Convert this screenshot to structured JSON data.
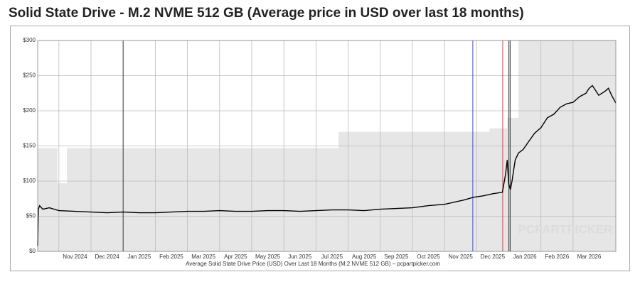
{
  "chart_data": {
    "type": "line",
    "title": "Solid State Drive - M.2 NVME 512 GB (Average price in USD over last 18 months)",
    "x_label": "Average Solid State Drive Price (USD) Over Last 18 Months (M.2 NVME 512 GB) – pcpartpicker.com",
    "watermark": "PCPARTPICKER",
    "xlim": [
      0.34,
      18.33
    ],
    "xticks": [
      {
        "value": 1,
        "label": "Nov 2024"
      },
      {
        "value": 2,
        "label": "Dec 2024"
      },
      {
        "value": 3,
        "label": "Jan 2025"
      },
      {
        "value": 4,
        "label": "Feb 2025"
      },
      {
        "value": 5,
        "label": "Mar 2025"
      },
      {
        "value": 6,
        "label": "Apr 2025"
      },
      {
        "value": 7,
        "label": "May 2025"
      },
      {
        "value": 8,
        "label": "Jun 2025"
      },
      {
        "value": 9,
        "label": "Jul 2025"
      },
      {
        "value": 10,
        "label": "Aug 2025"
      },
      {
        "value": 11,
        "label": "Sep 2025"
      },
      {
        "value": 12,
        "label": "Oct 2025"
      },
      {
        "value": 13,
        "label": "Nov 2025"
      },
      {
        "value": 14,
        "label": "Dec 2025"
      },
      {
        "value": 15,
        "label": "Jan 2026"
      },
      {
        "value": 16,
        "label": "Feb 2026"
      },
      {
        "value": 17,
        "label": "Mar 2026"
      }
    ],
    "ylim": [
      0,
      300
    ],
    "yticks": [
      {
        "value": 0,
        "label": "$0"
      },
      {
        "value": 50,
        "label": "$50"
      },
      {
        "value": 100,
        "label": "$100"
      },
      {
        "value": 150,
        "label": "$150"
      },
      {
        "value": 200,
        "label": "$200"
      },
      {
        "value": 250,
        "label": "$250"
      },
      {
        "value": 300,
        "label": "$300"
      }
    ],
    "grid": true,
    "vlines": [
      {
        "x": 13.88,
        "color": "#3b4fe0"
      },
      {
        "x": 14.81,
        "color": "#e04040"
      },
      {
        "x": 15.04,
        "color": "#222222"
      }
    ],
    "series": [
      {
        "style": "area",
        "color": "#e6e6e6",
        "x": [
          0.34,
          0.95,
          0.95,
          1.25,
          1.25,
          9.7,
          9.7,
          14.4,
          14.4,
          14.95,
          14.95,
          15.3,
          15.3,
          18.33
        ],
        "values": [
          147,
          147,
          97,
          97,
          147,
          147,
          170,
          170,
          175,
          175,
          190,
          190,
          300,
          300
        ]
      },
      {
        "style": "line",
        "color": "#000000",
        "x": [
          0.34,
          0.36,
          0.4,
          0.5,
          0.7,
          1.0,
          1.5,
          2.0,
          2.5,
          3.0,
          3.5,
          4.0,
          4.5,
          5,
          5.5,
          6,
          6.5,
          7,
          7.5,
          8,
          8.5,
          9,
          9.5,
          10,
          10.5,
          11,
          11.5,
          12,
          12.5,
          13,
          13.3,
          13.6,
          13.9,
          14.2,
          14.5,
          14.8,
          14.9,
          14.95,
          15,
          15.05,
          15.1,
          15.2,
          15.3,
          15.45,
          15.6,
          15.8,
          16,
          16.2,
          16.4,
          16.6,
          16.8,
          17,
          17.2,
          17.4,
          17.5,
          17.6,
          17.8,
          18,
          18.1,
          18.2,
          18.33
        ],
        "values": [
          8,
          60,
          65,
          60,
          62,
          58,
          57,
          56,
          55,
          56,
          55,
          55,
          56,
          57,
          57,
          58,
          57,
          57,
          58,
          58,
          57,
          58,
          59,
          59,
          58,
          60,
          61,
          62,
          65,
          67,
          70,
          73,
          77,
          79,
          82,
          84,
          110,
          130,
          95,
          88,
          100,
          130,
          140,
          145,
          155,
          168,
          176,
          190,
          195,
          205,
          210,
          212,
          220,
          225,
          232,
          236,
          222,
          228,
          232,
          222,
          211
        ]
      }
    ]
  }
}
